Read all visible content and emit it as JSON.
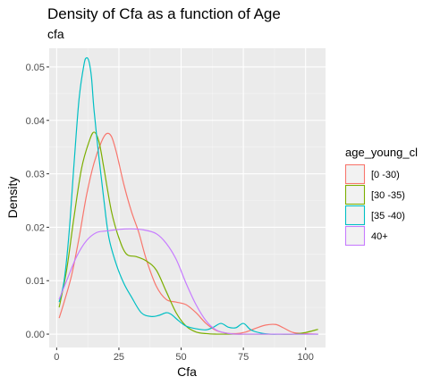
{
  "chart_data": {
    "type": "line",
    "title": "Density of Cfa as a function of Age",
    "subtitle": "cfa",
    "xlabel": "Cfa",
    "ylabel": "Density",
    "xlim": [
      -3,
      108
    ],
    "ylim": [
      -0.0025,
      0.0535
    ],
    "x_ticks": [
      0,
      25,
      50,
      75,
      100
    ],
    "x_tick_labels": [
      "0",
      "25",
      "50",
      "75",
      "100"
    ],
    "y_ticks": [
      0,
      0.01,
      0.02,
      0.03,
      0.04,
      0.05
    ],
    "y_tick_labels": [
      "0.00",
      "0.01",
      "0.02",
      "0.03",
      "0.04",
      "0.05"
    ],
    "grid": true,
    "legend": {
      "title": "age_young_cl",
      "position": "right"
    },
    "series": [
      {
        "name": "[0 -30)",
        "color": "#F8766D",
        "x": [
          1,
          3,
          6,
          9,
          12,
          15,
          18,
          20,
          22,
          24,
          27,
          30,
          33,
          36,
          40,
          44,
          48,
          52,
          56,
          60,
          64,
          68,
          72,
          76,
          80,
          84,
          88,
          91,
          95,
          100,
          105
        ],
        "y": [
          0.003,
          0.006,
          0.011,
          0.018,
          0.026,
          0.032,
          0.036,
          0.0375,
          0.037,
          0.034,
          0.028,
          0.023,
          0.019,
          0.014,
          0.009,
          0.0065,
          0.006,
          0.0055,
          0.004,
          0.002,
          0.0007,
          0.0002,
          0.0001,
          0.0004,
          0.0011,
          0.0017,
          0.0018,
          0.0012,
          0.0003,
          0.0001,
          0.0
        ]
      },
      {
        "name": "[30 -35)",
        "color": "#7CAE00",
        "x": [
          1,
          4,
          7,
          10,
          13,
          15,
          17,
          19,
          22,
          25,
          28,
          32,
          36,
          40,
          44,
          48,
          52,
          56,
          60,
          64,
          68,
          72,
          76,
          80,
          85,
          90,
          95,
          100,
          105
        ],
        "y": [
          0.005,
          0.012,
          0.022,
          0.031,
          0.036,
          0.0378,
          0.036,
          0.031,
          0.023,
          0.018,
          0.015,
          0.0145,
          0.0137,
          0.012,
          0.008,
          0.004,
          0.0015,
          0.0004,
          0.0001,
          0.0,
          0.0,
          0.0,
          0.0,
          0.0,
          0.0,
          0.0,
          0.0,
          0.0003,
          0.0009
        ]
      },
      {
        "name": "[35 -40)",
        "color": "#00BFC4",
        "x": [
          1,
          3,
          5,
          7,
          9,
          11,
          12,
          13,
          14,
          15,
          17,
          19,
          21,
          24,
          27,
          30,
          34,
          38,
          41,
          44,
          46,
          49,
          52,
          56,
          60,
          63,
          66,
          69,
          72,
          75,
          78,
          82,
          86,
          90,
          95,
          100,
          105
        ],
        "y": [
          0.006,
          0.01,
          0.019,
          0.032,
          0.044,
          0.0505,
          0.0517,
          0.051,
          0.048,
          0.042,
          0.033,
          0.025,
          0.018,
          0.013,
          0.0095,
          0.007,
          0.004,
          0.0033,
          0.0035,
          0.004,
          0.0037,
          0.0025,
          0.0015,
          0.001,
          0.0008,
          0.0013,
          0.002,
          0.0013,
          0.0012,
          0.002,
          0.0008,
          0.0002,
          0.0,
          0.0,
          0.0,
          0.0,
          0.0
        ]
      },
      {
        "name": "40+",
        "color": "#C77CFF",
        "x": [
          1,
          4,
          8,
          12,
          16,
          20,
          25,
          30,
          35,
          40,
          44,
          48,
          52,
          56,
          60,
          64,
          68,
          72,
          76,
          80,
          85,
          90,
          95,
          100,
          105
        ],
        "y": [
          0.0065,
          0.01,
          0.0145,
          0.0175,
          0.019,
          0.0193,
          0.0196,
          0.0197,
          0.0195,
          0.0188,
          0.017,
          0.014,
          0.0095,
          0.0055,
          0.0025,
          0.0008,
          0.0002,
          0.0,
          0.0,
          0.0,
          0.0,
          0.0,
          0.0,
          0.0,
          0.0
        ]
      }
    ]
  }
}
